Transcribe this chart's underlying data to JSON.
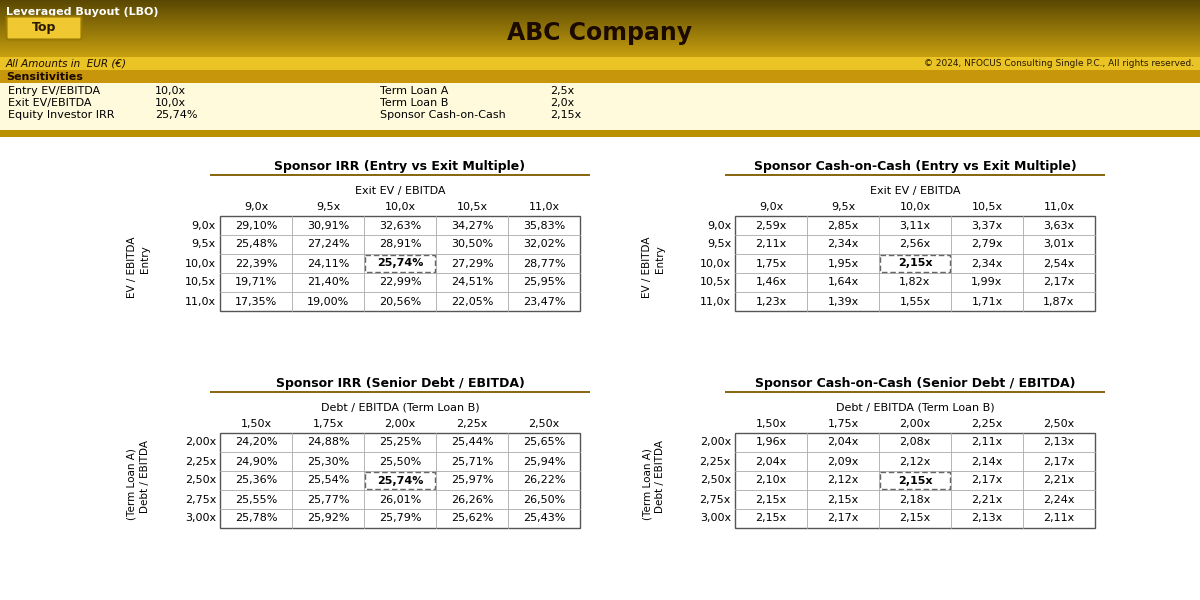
{
  "title": "ABC Company",
  "header_title": "Leveraged Buyout (LBO)",
  "top_button": "Top",
  "copyright": "© 2024, NFOCUS Consulting Single P.C., All rights reserved.",
  "amounts_label": "All Amounts in  EUR (€)",
  "sensitivities_label": "Sensitivities",
  "sens_left": [
    [
      "Entry EV/EBITDA",
      "10,0x"
    ],
    [
      "Exit EV/EBITDA",
      "10,0x"
    ],
    [
      "Equity Investor IRR",
      "25,74%"
    ]
  ],
  "sens_right": [
    [
      "Term Loan A",
      "2,5x"
    ],
    [
      "Term Loan B",
      "2,0x"
    ],
    [
      "Sponsor Cash-on-Cash",
      "2,15x"
    ]
  ],
  "table1_title": "Sponsor IRR (Entry vs Exit Multiple)",
  "table1_col_header": "Exit EV / EBITDA",
  "table1_row_header_line1": "Entry",
  "table1_row_header_line2": "EV / EBITDA",
  "table1_cols": [
    "9,0x",
    "9,5x",
    "10,0x",
    "10,5x",
    "11,0x"
  ],
  "table1_rows": [
    "9,0x",
    "9,5x",
    "10,0x",
    "10,5x",
    "11,0x"
  ],
  "table1_data": [
    [
      "29,10%",
      "30,91%",
      "32,63%",
      "34,27%",
      "35,83%"
    ],
    [
      "25,48%",
      "27,24%",
      "28,91%",
      "30,50%",
      "32,02%"
    ],
    [
      "22,39%",
      "24,11%",
      "25,74%",
      "27,29%",
      "28,77%"
    ],
    [
      "19,71%",
      "21,40%",
      "22,99%",
      "24,51%",
      "25,95%"
    ],
    [
      "17,35%",
      "19,00%",
      "20,56%",
      "22,05%",
      "23,47%"
    ]
  ],
  "table1_highlight": [
    2,
    2
  ],
  "table2_title": "Sponsor Cash-on-Cash (Entry vs Exit Multiple)",
  "table2_col_header": "Exit EV / EBITDA",
  "table2_row_header_line1": "Entry",
  "table2_row_header_line2": "EV / EBITDA",
  "table2_cols": [
    "9,0x",
    "9,5x",
    "10,0x",
    "10,5x",
    "11,0x"
  ],
  "table2_rows": [
    "9,0x",
    "9,5x",
    "10,0x",
    "10,5x",
    "11,0x"
  ],
  "table2_data": [
    [
      "2,59x",
      "2,85x",
      "3,11x",
      "3,37x",
      "3,63x"
    ],
    [
      "2,11x",
      "2,34x",
      "2,56x",
      "2,79x",
      "3,01x"
    ],
    [
      "1,75x",
      "1,95x",
      "2,15x",
      "2,34x",
      "2,54x"
    ],
    [
      "1,46x",
      "1,64x",
      "1,82x",
      "1,99x",
      "2,17x"
    ],
    [
      "1,23x",
      "1,39x",
      "1,55x",
      "1,71x",
      "1,87x"
    ]
  ],
  "table2_highlight": [
    2,
    2
  ],
  "table3_title": "Sponsor IRR (Senior Debt / EBITDA)",
  "table3_col_header": "Debt / EBITDA (Term Loan B)",
  "table3_row_header_line1": "Debt / EBITDA",
  "table3_row_header_line2": "(Term Loan A)",
  "table3_cols": [
    "1,50x",
    "1,75x",
    "2,00x",
    "2,25x",
    "2,50x"
  ],
  "table3_rows": [
    "2,00x",
    "2,25x",
    "2,50x",
    "2,75x",
    "3,00x"
  ],
  "table3_data": [
    [
      "24,20%",
      "24,88%",
      "25,25%",
      "25,44%",
      "25,65%"
    ],
    [
      "24,90%",
      "25,30%",
      "25,50%",
      "25,71%",
      "25,94%"
    ],
    [
      "25,36%",
      "25,54%",
      "25,74%",
      "25,97%",
      "26,22%"
    ],
    [
      "25,55%",
      "25,77%",
      "26,01%",
      "26,26%",
      "26,50%"
    ],
    [
      "25,78%",
      "25,92%",
      "25,79%",
      "25,62%",
      "25,43%"
    ]
  ],
  "table3_highlight": [
    2,
    2
  ],
  "table4_title": "Sponsor Cash-on-Cash (Senior Debt / EBITDA)",
  "table4_col_header": "Debt / EBITDA (Term Loan B)",
  "table4_row_header_line1": "Debt / EBITDA",
  "table4_row_header_line2": "(Term Loan A)",
  "table4_cols": [
    "1,50x",
    "1,75x",
    "2,00x",
    "2,25x",
    "2,50x"
  ],
  "table4_rows": [
    "2,00x",
    "2,25x",
    "2,50x",
    "2,75x",
    "3,00x"
  ],
  "table4_data": [
    [
      "1,96x",
      "2,04x",
      "2,08x",
      "2,11x",
      "2,13x"
    ],
    [
      "2,04x",
      "2,09x",
      "2,12x",
      "2,14x",
      "2,17x"
    ],
    [
      "2,10x",
      "2,12x",
      "2,15x",
      "2,17x",
      "2,21x"
    ],
    [
      "2,15x",
      "2,15x",
      "2,18x",
      "2,21x",
      "2,24x"
    ],
    [
      "2,15x",
      "2,17x",
      "2,15x",
      "2,13x",
      "2,11x"
    ]
  ],
  "table4_highlight": [
    2,
    2
  ]
}
